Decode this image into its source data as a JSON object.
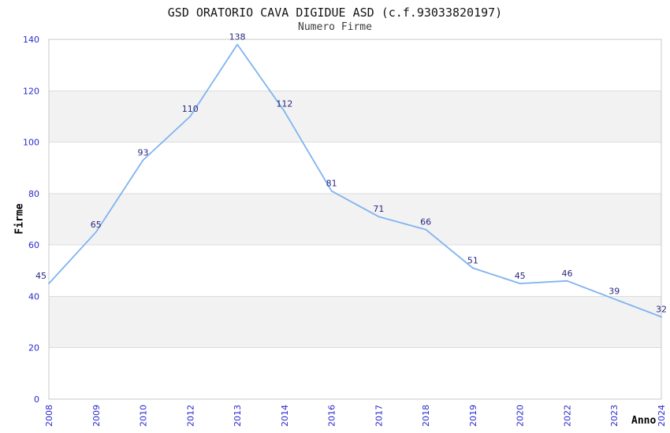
{
  "header": {
    "title": "GSD ORATORIO CAVA DIGIDUE ASD (c.f.93033820197)",
    "subtitle": "Numero Firme"
  },
  "chart_data": {
    "type": "line",
    "title": "GSD ORATORIO CAVA DIGIDUE ASD (c.f.93033820197)",
    "subtitle": "Numero Firme",
    "xlabel": "Anno",
    "ylabel": "Firme",
    "categories": [
      "2008",
      "2009",
      "2010",
      "2012",
      "2013",
      "2014",
      "2016",
      "2017",
      "2018",
      "2019",
      "2020",
      "2022",
      "2023",
      "2024"
    ],
    "values": [
      45,
      65,
      93,
      110,
      138,
      112,
      81,
      71,
      66,
      51,
      45,
      46,
      39,
      32
    ],
    "ylim": [
      0,
      140
    ],
    "ytick_step": 20,
    "yticks": [
      0,
      20,
      40,
      60,
      80,
      100,
      120,
      140
    ],
    "grid": true,
    "banding": "alternating horizontal gray bands between gridlines (20-40, 60-80, 100-120)",
    "legend": "none",
    "point_labels_visible": true
  },
  "colors": {
    "line": "#7FB3F0",
    "tick_label": "#2929CC",
    "value_label": "#28287E",
    "grid_line": "#DCDCDC",
    "band_fill": "#F2F2F3",
    "plot_border": "#C8C8C8",
    "background": "#FFFFFF"
  }
}
